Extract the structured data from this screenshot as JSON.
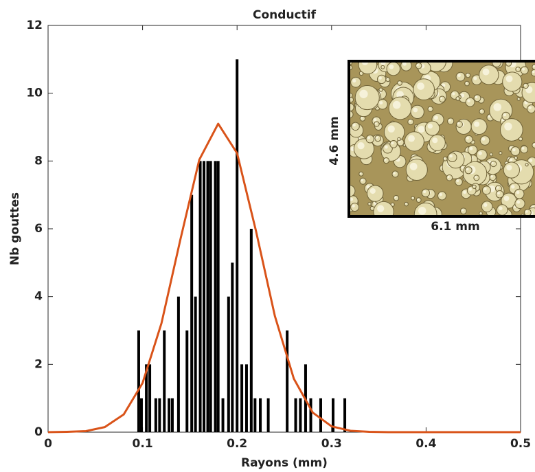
{
  "chart_data": {
    "type": "bar",
    "title": "Conductif",
    "xlabel": "Rayons (mm)",
    "ylabel": "Nb gouttes",
    "x": [
      0.0959,
      0.0988,
      0.104,
      0.1076,
      0.114,
      0.118,
      0.123,
      0.128,
      0.1315,
      0.138,
      0.147,
      0.152,
      0.156,
      0.161,
      0.165,
      0.169,
      0.172,
      0.177,
      0.18,
      0.185,
      0.191,
      0.195,
      0.2,
      0.205,
      0.21,
      0.215,
      0.219,
      0.2246,
      0.233,
      0.253,
      0.262,
      0.267,
      0.2725,
      0.278,
      0.2885,
      0.3016,
      0.314
    ],
    "values": [
      3,
      1,
      2,
      2,
      1,
      1,
      3,
      1,
      1,
      4,
      3,
      7,
      4,
      8,
      8,
      8,
      8,
      8,
      8,
      1,
      4,
      5,
      11,
      2,
      2,
      6,
      1,
      1,
      1,
      3,
      1,
      1,
      2,
      1,
      1,
      1,
      1
    ],
    "color": "#000000",
    "fit": {
      "type": "line",
      "color": "#d95319",
      "x": [
        0,
        0.02,
        0.04,
        0.06,
        0.08,
        0.1,
        0.12,
        0.14,
        0.16,
        0.18,
        0.2,
        0.22,
        0.24,
        0.26,
        0.28,
        0.3,
        0.32,
        0.34,
        0.36,
        0.38,
        0.4,
        0.42,
        0.44,
        0.46,
        0.48,
        0.5
      ],
      "values": [
        0,
        0.01,
        0.03,
        0.15,
        0.52,
        1.45,
        3.21,
        5.68,
        8.04,
        9.1,
        8.23,
        5.94,
        3.43,
        1.58,
        0.58,
        0.17,
        0.04,
        0.01,
        0,
        0,
        0,
        0,
        0,
        0,
        0,
        0
      ]
    },
    "xlim": [
      0,
      0.5
    ],
    "xticks": [
      0,
      0.1,
      0.2,
      0.3,
      0.4,
      0.5
    ],
    "ylim": [
      0,
      12
    ],
    "yticks": [
      0,
      2,
      4,
      6,
      8,
      10,
      12
    ],
    "annotations": [
      "4.6 mm",
      "6.1 mm"
    ]
  }
}
